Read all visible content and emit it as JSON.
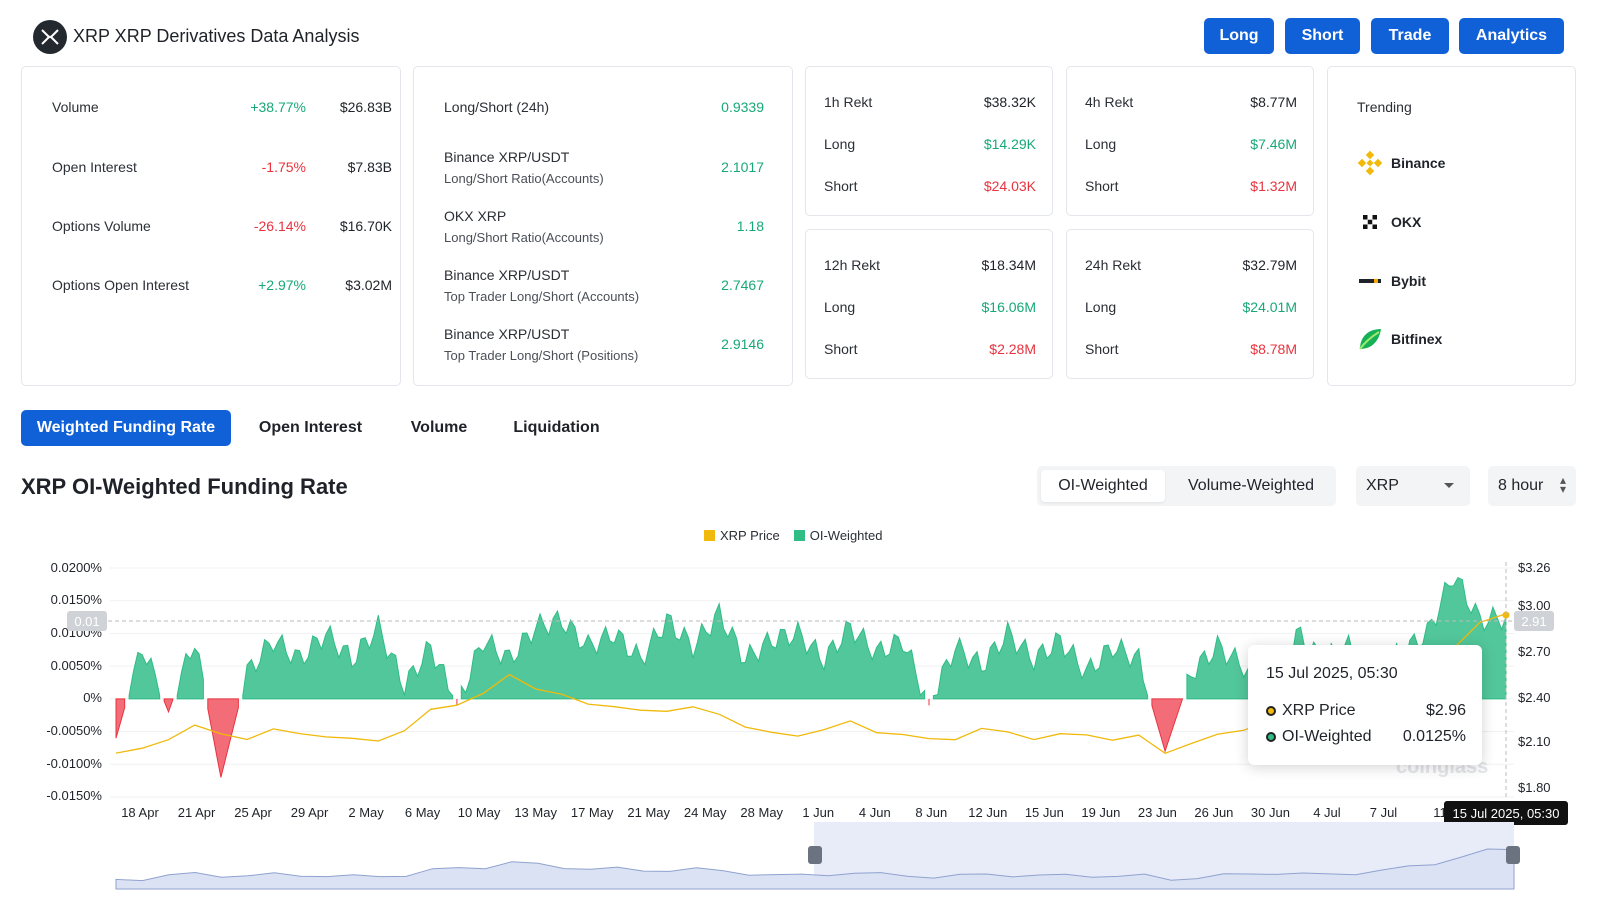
{
  "header": {
    "title": "XRP XRP Derivatives Data Analysis",
    "buttons": [
      "Long",
      "Short",
      "Trade",
      "Analytics"
    ]
  },
  "summary": {
    "rows": [
      {
        "label": "Volume",
        "change": "+38.77%",
        "value": "$26.83B",
        "dir": "up"
      },
      {
        "label": "Open Interest",
        "change": "-1.75%",
        "value": "$7.83B",
        "dir": "down"
      },
      {
        "label": "Options Volume",
        "change": "-26.14%",
        "value": "$16.70K",
        "dir": "down"
      },
      {
        "label": "Options Open Interest",
        "change": "+2.97%",
        "value": "$3.02M",
        "dir": "up"
      }
    ]
  },
  "ratios": {
    "rows": [
      {
        "label": "Long/Short (24h)",
        "sub": "",
        "value": "0.9339"
      },
      {
        "label": "Binance XRP/USDT",
        "sub": "Long/Short Ratio(Accounts)",
        "value": "2.1017"
      },
      {
        "label": "OKX XRP",
        "sub": "Long/Short Ratio(Accounts)",
        "value": "1.18"
      },
      {
        "label": "Binance XRP/USDT",
        "sub": "Top Trader Long/Short (Accounts)",
        "value": "2.7467"
      },
      {
        "label": "Binance XRP/USDT",
        "sub": "Top Trader Long/Short (Positions)",
        "value": "2.9146"
      }
    ]
  },
  "rekt": [
    {
      "title": "1h Rekt",
      "total": "$38.32K",
      "long_label": "Long",
      "long": "$14.29K",
      "short_label": "Short",
      "short": "$24.03K"
    },
    {
      "title": "4h Rekt",
      "total": "$8.77M",
      "long_label": "Long",
      "long": "$7.46M",
      "short_label": "Short",
      "short": "$1.32M"
    },
    {
      "title": "12h Rekt",
      "total": "$18.34M",
      "long_label": "Long",
      "long": "$16.06M",
      "short_label": "Short",
      "short": "$2.28M"
    },
    {
      "title": "24h Rekt",
      "total": "$32.79M",
      "long_label": "Long",
      "long": "$24.01M",
      "short_label": "Short",
      "short": "$8.78M"
    }
  ],
  "trending": {
    "title": "Trending",
    "items": [
      {
        "name": "Binance",
        "icon": "binance-icon"
      },
      {
        "name": "OKX",
        "icon": "okx-icon"
      },
      {
        "name": "Bybit",
        "icon": "bybit-icon"
      },
      {
        "name": "Bitfinex",
        "icon": "bitfinex-icon"
      }
    ]
  },
  "tabs": [
    "Weighted Funding Rate",
    "Open Interest",
    "Volume",
    "Liquidation"
  ],
  "section": {
    "title": "XRP OI-Weighted Funding Rate",
    "weighting": [
      "OI-Weighted",
      "Volume-Weighted"
    ],
    "coin": "XRP",
    "interval": "8 hour"
  },
  "colors": {
    "accent": "#1060d8",
    "positive": "#18a878",
    "negative": "#e8343f",
    "price_line": "#f0b90b",
    "funding_fill": "#2ebd85"
  },
  "chart_data": {
    "type": "area",
    "legend": [
      "XRP Price",
      "OI-Weighted"
    ],
    "y_left_ticks": [
      "0.0200%",
      "0.0150%",
      "0.0100%",
      "0.0050%",
      "0%",
      "-0.0050%",
      "-0.0100%",
      "-0.0150%"
    ],
    "y_right_ticks": [
      "$3.26",
      "$3.00",
      "$2.70",
      "$2.40",
      "$2.10",
      "$1.80"
    ],
    "ylim_left": [
      -0.015,
      0.02
    ],
    "ylim_right": [
      1.8,
      3.26
    ],
    "x_ticks": [
      "18 Apr",
      "21 Apr",
      "25 Apr",
      "29 Apr",
      "2 May",
      "6 May",
      "10 May",
      "13 May",
      "17 May",
      "21 May",
      "24 May",
      "28 May",
      "1 Jun",
      "4 Jun",
      "8 Jun",
      "12 Jun",
      "15 Jun",
      "19 Jun",
      "23 Jun",
      "26 Jun",
      "30 Jun",
      "4 Jul",
      "7 Jul",
      "11"
    ],
    "series": [
      {
        "name": "XRP Price",
        "values": [
          2.08,
          2.1,
          2.18,
          2.25,
          2.2,
          2.18,
          2.22,
          2.21,
          2.19,
          2.16,
          2.17,
          2.22,
          2.35,
          2.4,
          2.45,
          2.58,
          2.5,
          2.44,
          2.4,
          2.38,
          2.34,
          2.36,
          2.37,
          2.32,
          2.26,
          2.2,
          2.19,
          2.24,
          2.27,
          2.22,
          2.2,
          2.16,
          2.18,
          2.23,
          2.21,
          2.18,
          2.19,
          2.2,
          2.17,
          2.18,
          2.09,
          2.14,
          2.19,
          2.24,
          2.28,
          2.23,
          2.21,
          2.27,
          2.35,
          2.42,
          2.55,
          2.76,
          2.91,
          2.96
        ]
      },
      {
        "name": "OI-Weighted",
        "values": [
          -0.006,
          0.008,
          -0.002,
          0.009,
          -0.012,
          0.004,
          0.009,
          0.006,
          0.01,
          0.006,
          0.011,
          0.002,
          0.008,
          -0.001,
          0.009,
          0.006,
          0.011,
          0.012,
          0.008,
          0.01,
          0.006,
          0.012,
          0.008,
          0.013,
          0.006,
          0.009,
          0.01,
          0.006,
          0.011,
          0.007,
          0.009,
          -0.001,
          0.008,
          0.005,
          0.01,
          0.006,
          0.009,
          0.004,
          0.008,
          0.006,
          -0.008,
          0.004,
          0.008,
          0.005,
          -0.002,
          0.01,
          0.006,
          0.008,
          0.005,
          0.007,
          0.01,
          0.019,
          0.012,
          0.0125
        ]
      }
    ],
    "crosshair_value_left": "0.01",
    "crosshair_value_right": "2.91",
    "tooltip": {
      "title": "15 Jul 2025, 05:30",
      "price_label": "XRP Price",
      "price": "$2.96",
      "funding_label": "OI-Weighted",
      "funding": "0.0125%"
    },
    "crosshair_x_label": "15 Jul 2025, 05:30",
    "watermark": "coinglass",
    "grid": true,
    "legend_position": "top-center"
  }
}
